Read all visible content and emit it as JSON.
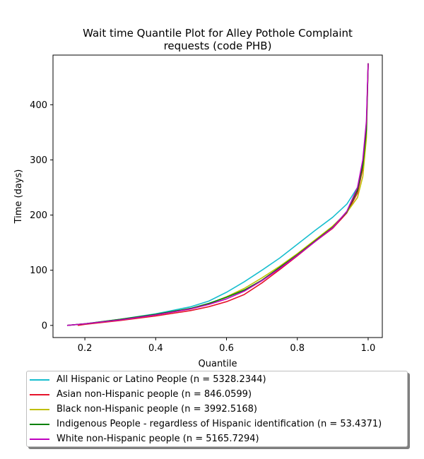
{
  "chart_data": {
    "type": "line",
    "title_line1": "Wait time Quantile Plot for Alley Pothole Complaint",
    "title_line2": "requests (code PHB)",
    "xlabel": "Quantile",
    "ylabel": "Time (days)",
    "xlim": [
      0.11,
      1.04
    ],
    "ylim": [
      -22,
      490
    ],
    "xticks": [
      0.2,
      0.4,
      0.6,
      0.8,
      1.0
    ],
    "xtick_labels": [
      "0.2",
      "0.4",
      "0.6",
      "0.8",
      "1.0"
    ],
    "yticks": [
      0,
      100,
      200,
      300,
      400
    ],
    "ytick_labels": [
      "0",
      "100",
      "200",
      "300",
      "400"
    ],
    "grid": false,
    "legend_placement": "below",
    "series": [
      {
        "name": "All Hispanic or Latino People (n = 5328.2344)",
        "color": "#17becf",
        "x": [
          0.15,
          0.2,
          0.3,
          0.4,
          0.5,
          0.55,
          0.6,
          0.65,
          0.7,
          0.75,
          0.8,
          0.85,
          0.9,
          0.94,
          0.97,
          0.985,
          0.995,
          1.0
        ],
        "y": [
          0,
          3,
          11,
          21,
          34,
          44,
          60,
          79,
          100,
          122,
          147,
          172,
          196,
          220,
          250,
          290,
          360,
          475
        ]
      },
      {
        "name": "Asian non-Hispanic people (n = 846.0599)",
        "color": "#e6132b",
        "x": [
          0.18,
          0.2,
          0.3,
          0.4,
          0.5,
          0.55,
          0.6,
          0.65,
          0.7,
          0.75,
          0.8,
          0.85,
          0.9,
          0.94,
          0.97,
          0.985,
          0.995,
          1.0
        ],
        "y": [
          0,
          2,
          9,
          17,
          27,
          34,
          43,
          56,
          77,
          101,
          126,
          152,
          176,
          204,
          240,
          285,
          355,
          475
        ]
      },
      {
        "name": "Black non-Hispanic people (n = 3992.5168)",
        "color": "#bfbf00",
        "x": [
          0.15,
          0.2,
          0.3,
          0.4,
          0.5,
          0.55,
          0.6,
          0.65,
          0.7,
          0.75,
          0.8,
          0.85,
          0.9,
          0.94,
          0.97,
          0.985,
          0.995,
          1.0
        ],
        "y": [
          0,
          3,
          10,
          19,
          30,
          39,
          52,
          67,
          86,
          107,
          130,
          155,
          180,
          205,
          232,
          270,
          340,
          475
        ]
      },
      {
        "name": "Indigenous People - regardless of Hispanic identification (n = 53.4371)",
        "color": "#008000",
        "x": [
          0.15,
          0.2,
          0.3,
          0.4,
          0.5,
          0.55,
          0.6,
          0.65,
          0.7,
          0.75,
          0.8,
          0.85,
          0.9,
          0.94,
          0.97,
          0.985,
          0.995,
          1.0
        ],
        "y": [
          0,
          3,
          11,
          20,
          31,
          40,
          51,
          64,
          82,
          105,
          128,
          153,
          178,
          206,
          245,
          290,
          355,
          475
        ]
      },
      {
        "name": "White non-Hispanic people (n = 5165.7294)",
        "color": "#bf00bf",
        "x": [
          0.15,
          0.2,
          0.3,
          0.4,
          0.5,
          0.55,
          0.6,
          0.65,
          0.7,
          0.75,
          0.8,
          0.85,
          0.9,
          0.94,
          0.97,
          0.985,
          0.995,
          1.0
        ],
        "y": [
          0,
          3,
          10,
          19,
          30,
          38,
          48,
          62,
          81,
          103,
          127,
          152,
          177,
          207,
          250,
          300,
          370,
          475
        ]
      }
    ]
  }
}
